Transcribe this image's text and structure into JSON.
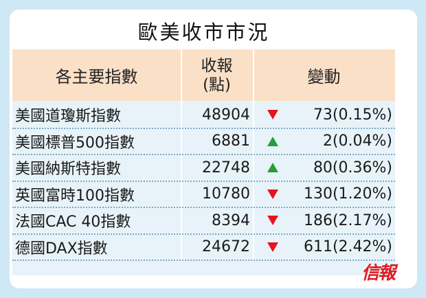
{
  "title": "歐美收市市況",
  "header": {
    "col_index": "各主要指數",
    "col_close_line1": "收報",
    "col_close_line2": "(點)",
    "col_change": "變動"
  },
  "rows": [
    {
      "name": "美國道瓊斯指數",
      "close": "48904",
      "direction": "down",
      "change": "73(0.15%)"
    },
    {
      "name": "美國標普500指數",
      "close": "6881",
      "direction": "up",
      "change": "2(0.04%)"
    },
    {
      "name": "美國納斯特指數",
      "close": "22748",
      "direction": "up",
      "change": "80(0.36%)"
    },
    {
      "name": "英國富時100指數",
      "close": "10780",
      "direction": "down",
      "change": "130(1.20%)"
    },
    {
      "name": "法國CAC 40指數",
      "close": "8394",
      "direction": "down",
      "change": "186(2.17%)"
    },
    {
      "name": "德國DAX指數",
      "close": "24672",
      "direction": "down",
      "change": "611(2.42%)"
    }
  ],
  "logo_text": "信報",
  "colors": {
    "up": "#2a9c3d",
    "down": "#e6141e",
    "header_bg": "#fae0c7",
    "page_bg": "#cfe8f5",
    "logo": "#e01a22"
  }
}
